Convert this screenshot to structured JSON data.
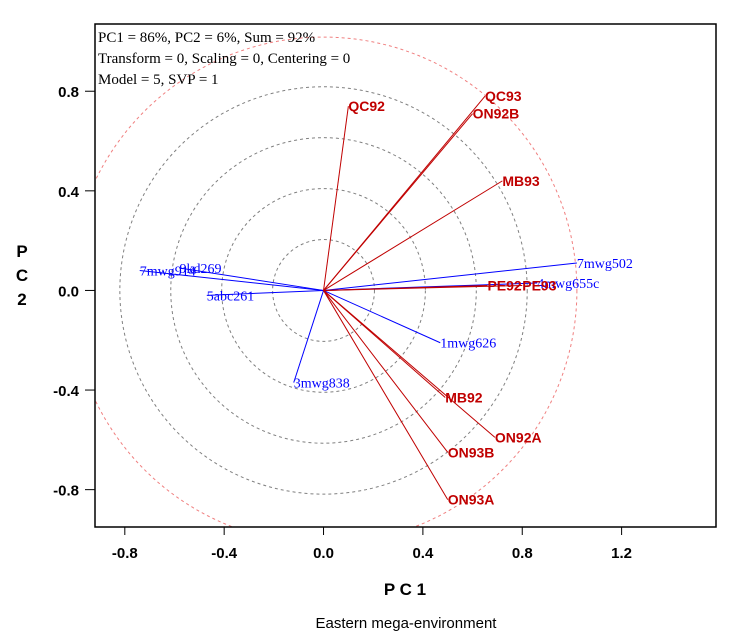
{
  "chart_data": {
    "type": "scatter",
    "subtype": "GGE biplot (vector view)",
    "caption": "Eastern mega-environment",
    "xlabel": "P C 1",
    "ylabel": [
      "P",
      "C",
      "2"
    ],
    "xlim": [
      -0.92,
      1.58
    ],
    "ylim": [
      -0.95,
      1.07
    ],
    "xticks": [
      -0.8,
      -0.4,
      0.0,
      0.4,
      0.8,
      1.2
    ],
    "xtick_labels": [
      "-0.8",
      "-0.4",
      "0.0",
      "0.4",
      "0.8",
      "1.2"
    ],
    "yticks": [
      0.8,
      0.4,
      0.0,
      -0.4,
      -0.8
    ],
    "ytick_labels": [
      "0.8",
      "0.4",
      "0.0",
      "-0.4",
      "-0.8"
    ],
    "grid": false,
    "info_lines": [
      "PC1 = 86%, PC2 = 6%, Sum = 92%",
      "Transform = 0, Scaling = 0, Centering = 0",
      "Model = 5, SVP = 1"
    ],
    "concentric_circles": {
      "radii": [
        0.205,
        0.41,
        0.615,
        0.82
      ],
      "style": "dashed",
      "color": "#808080"
    },
    "outer_circle": {
      "radius": 1.02,
      "style": "dashed",
      "color": "#f08080"
    },
    "colors": {
      "environments": "#c00000",
      "genotypes": "#0000ff"
    },
    "environments": [
      {
        "name": "QC92",
        "x": 0.1,
        "y": 0.74
      },
      {
        "name": "QC93",
        "x": 0.65,
        "y": 0.78
      },
      {
        "name": "ON92B",
        "x": 0.6,
        "y": 0.71
      },
      {
        "name": "MB93",
        "x": 0.72,
        "y": 0.44
      },
      {
        "name": "PE92",
        "x": 0.66,
        "y": 0.02
      },
      {
        "name": "PE93",
        "x": 0.8,
        "y": 0.02
      },
      {
        "name": "MB92",
        "x": 0.49,
        "y": -0.43
      },
      {
        "name": "ON92A",
        "x": 0.69,
        "y": -0.59
      },
      {
        "name": "ON93B",
        "x": 0.5,
        "y": -0.65
      },
      {
        "name": "ON93A",
        "x": 0.5,
        "y": -0.84
      }
    ],
    "genotypes": [
      {
        "name": "7mwg502",
        "x": 1.02,
        "y": 0.11
      },
      {
        "name": "4mwg655c",
        "x": 0.86,
        "y": 0.03
      },
      {
        "name": "1mwg626",
        "x": 0.47,
        "y": -0.21
      },
      {
        "name": "3mwg838",
        "x": -0.12,
        "y": -0.37
      },
      {
        "name": "5abc261",
        "x": -0.47,
        "y": -0.02
      },
      {
        "name": "7mwg914",
        "x": -0.74,
        "y": 0.08
      },
      {
        "name": "9kd269",
        "x": -0.58,
        "y": 0.09
      }
    ]
  }
}
